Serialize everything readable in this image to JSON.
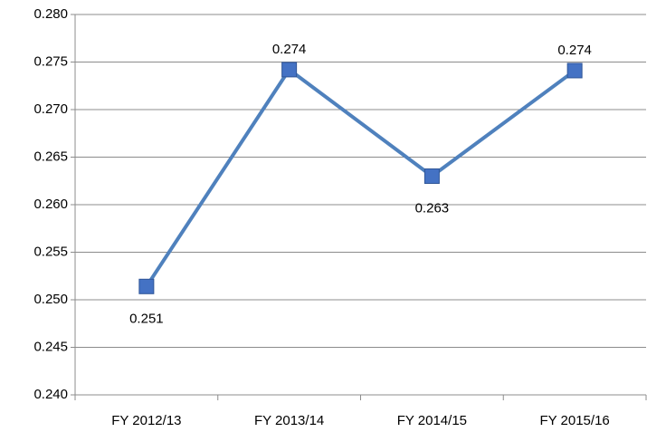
{
  "chart_data": {
    "type": "line",
    "categories": [
      "FY 2012/13",
      "FY 2013/14",
      "FY 2014/15",
      "FY 2015/16"
    ],
    "series": [
      {
        "color": "#4f81bd",
        "marker_color": "#4472c4",
        "values": [
          0.2514,
          0.2742,
          0.263,
          0.2741
        ],
        "value_labels": [
          "0.251",
          "0.274",
          "0.263",
          "0.274"
        ]
      }
    ],
    "ylim": [
      0.24,
      0.28
    ],
    "yticks": [
      {
        "value": 0.24,
        "label": "0.240"
      },
      0.245,
      {
        "value": 0.25,
        "label": "0.250"
      },
      0.255,
      {
        "value": 0.26,
        "label": "0.260"
      },
      0.265,
      {
        "value": 0.27,
        "label": "0.270"
      },
      0.275,
      {
        "value": 0.28,
        "label": "0.280"
      }
    ],
    "grid": true
  }
}
